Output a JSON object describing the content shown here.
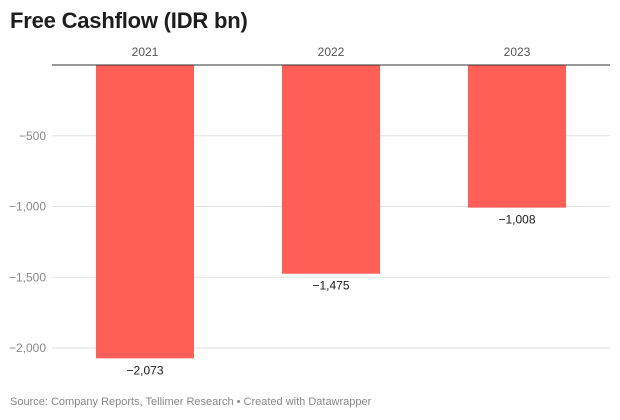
{
  "title": "Free Cashflow (IDR bn)",
  "source": "Source: Company Reports, Tellimer Research • Created with Datawrapper",
  "colors": {
    "bar": "#ff5f57",
    "grid": "#e2e2e2",
    "axis": "#333333",
    "tick": "#888888",
    "label": "#1a1a1a"
  },
  "chart_data": {
    "type": "bar",
    "title": "Free Cashflow (IDR bn)",
    "categories": [
      "2021",
      "2022",
      "2023"
    ],
    "values": [
      -2073,
      -1475,
      -1008
    ],
    "value_labels": [
      "−2,073",
      "−1,475",
      "−1,008"
    ],
    "xlabel": "",
    "ylabel": "",
    "ylim": [
      -2000,
      0
    ],
    "yticks": [
      -500,
      -1000,
      -1500,
      -2000
    ],
    "ytick_labels": [
      "−500",
      "−1,000",
      "−1,500",
      "−2,000"
    ],
    "grid": true,
    "x_axis_position": "top"
  }
}
